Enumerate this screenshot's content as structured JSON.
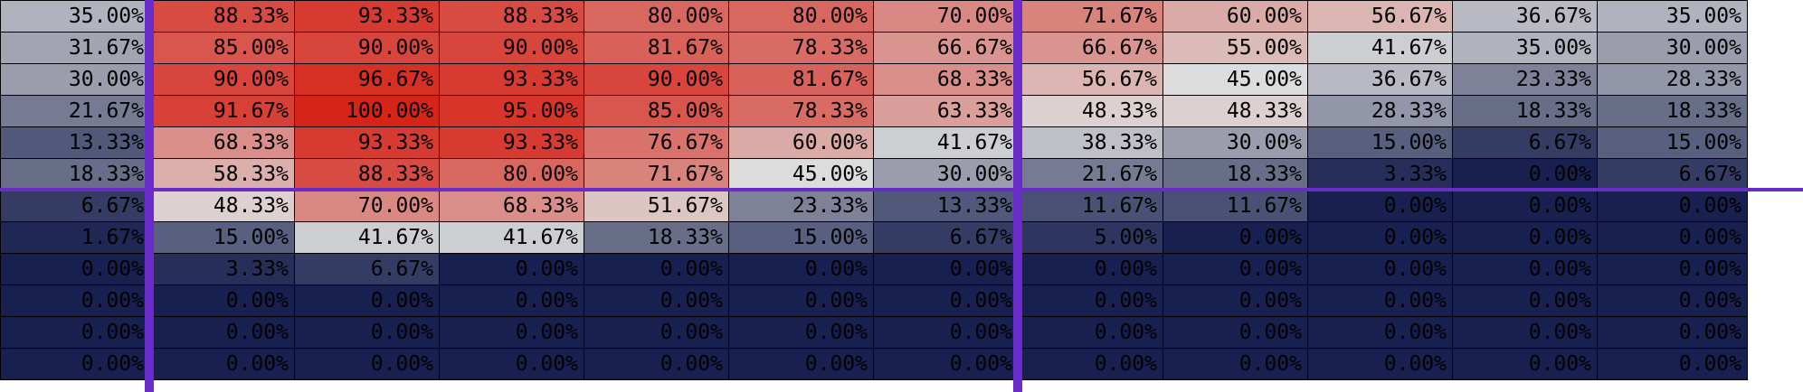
{
  "chart_data": {
    "type": "heatmap",
    "rows": [
      [
        35.0,
        88.33,
        93.33,
        88.33,
        80.0,
        80.0,
        70.0,
        71.67,
        60.0,
        56.67,
        36.67,
        35.0
      ],
      [
        31.67,
        85.0,
        90.0,
        90.0,
        81.67,
        78.33,
        66.67,
        66.67,
        55.0,
        41.67,
        35.0,
        30.0
      ],
      [
        30.0,
        90.0,
        96.67,
        93.33,
        90.0,
        81.67,
        68.33,
        56.67,
        45.0,
        36.67,
        23.33,
        28.33
      ],
      [
        21.67,
        91.67,
        100.0,
        95.0,
        85.0,
        78.33,
        63.33,
        48.33,
        48.33,
        28.33,
        18.33,
        18.33
      ],
      [
        13.33,
        68.33,
        93.33,
        93.33,
        76.67,
        60.0,
        41.67,
        38.33,
        30.0,
        15.0,
        6.67,
        15.0
      ],
      [
        18.33,
        58.33,
        88.33,
        80.0,
        71.67,
        45.0,
        30.0,
        21.67,
        18.33,
        3.33,
        0.0,
        6.67
      ],
      [
        6.67,
        48.33,
        70.0,
        68.33,
        51.67,
        23.33,
        13.33,
        11.67,
        11.67,
        0.0,
        0.0,
        0.0
      ],
      [
        1.67,
        15.0,
        41.67,
        41.67,
        18.33,
        15.0,
        6.67,
        5.0,
        0.0,
        0.0,
        0.0,
        0.0
      ],
      [
        0.0,
        3.33,
        6.67,
        0.0,
        0.0,
        0.0,
        0.0,
        0.0,
        0.0,
        0.0,
        0.0,
        0.0
      ],
      [
        0.0,
        0.0,
        0.0,
        0.0,
        0.0,
        0.0,
        0.0,
        0.0,
        0.0,
        0.0,
        0.0,
        0.0
      ],
      [
        0.0,
        0.0,
        0.0,
        0.0,
        0.0,
        0.0,
        0.0,
        0.0,
        0.0,
        0.0,
        0.0,
        0.0
      ],
      [
        0.0,
        0.0,
        0.0,
        0.0,
        0.0,
        0.0,
        0.0,
        0.0,
        0.0,
        0.0,
        0.0,
        0.0
      ]
    ],
    "value_suffix": "%",
    "decimals": 2,
    "colormap": {
      "low": "#18204f",
      "mid": "#dcdcdc",
      "high": "#d62418"
    },
    "value_range": [
      0,
      100
    ],
    "divider_color": "#6a2cc8",
    "vertical_dividers_after_column": [
      1,
      7
    ],
    "horizontal_divider_after_row": 6
  }
}
